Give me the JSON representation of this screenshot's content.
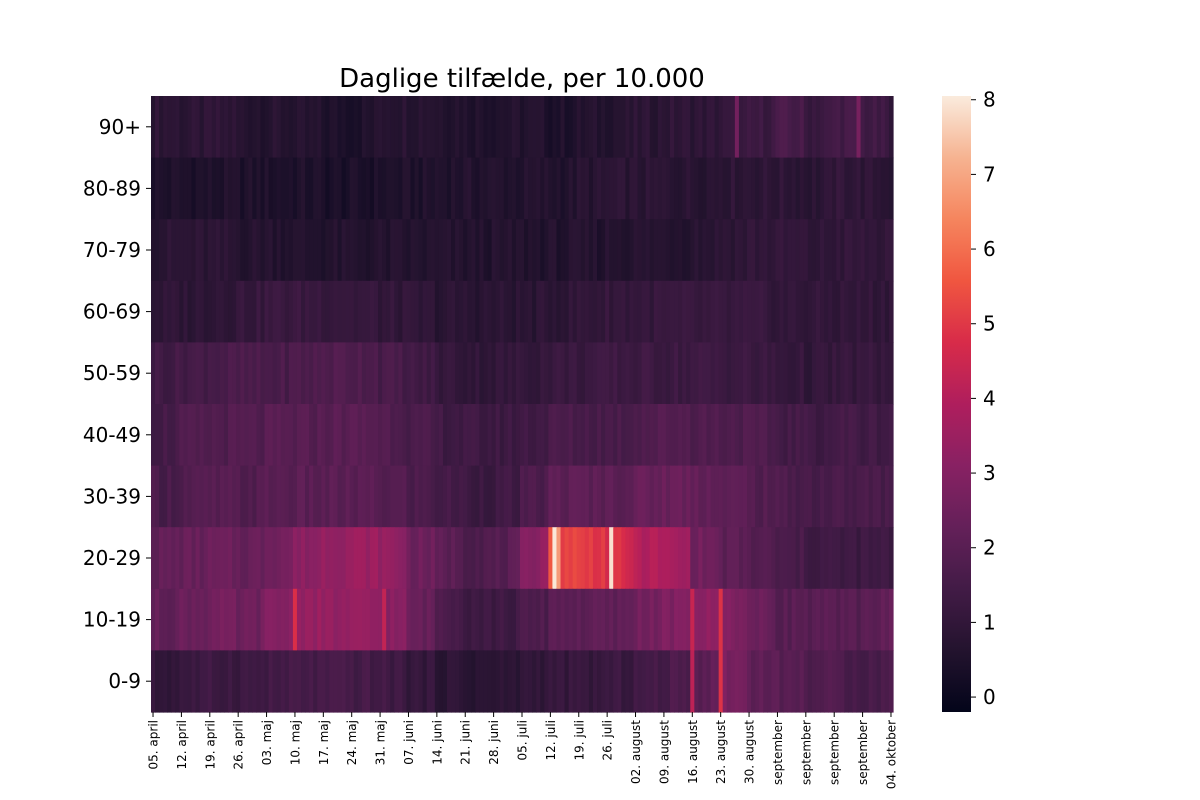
{
  "chart_data": {
    "type": "heatmap",
    "title": "Daglige tilfælde, per 10.000",
    "rows": [
      "90+",
      "80-89",
      "70-79",
      "60-69",
      "50-59",
      "40-49",
      "30-39",
      "20-29",
      "10-19",
      "0-9"
    ],
    "x_tick_labels": [
      "05. april",
      "12. april",
      "19. april",
      "26. april",
      "03. maj",
      "10. maj",
      "17. maj",
      "24. maj",
      "31. maj",
      "07. juni",
      "14. juni",
      "21. juni",
      "28. juni",
      "05. juli",
      "12. juli",
      "19. juli",
      "26. juli",
      "02. august",
      "09. august",
      "16. august",
      "23. august",
      "30. august",
      "september",
      "september",
      "september",
      "september",
      "04. oktober"
    ],
    "x_range": [
      "2021-04-05",
      "2021-10-04"
    ],
    "colorbar": {
      "min": -0.2,
      "max": 8.05,
      "ticks": [
        0,
        1,
        2,
        3,
        4,
        5,
        6,
        7,
        8
      ],
      "colormap": "rocket"
    },
    "weekly_values": {
      "90+": [
        0.9,
        0.8,
        0.9,
        0.7,
        0.7,
        0.6,
        0.5,
        0.5,
        0.8,
        0.8,
        0.7,
        0.6,
        0.6,
        0.6,
        0.5,
        0.6,
        0.7,
        0.8,
        0.9,
        0.9,
        1.0,
        1.2,
        1.6,
        1.2,
        1.5,
        1.4,
        0.8
      ],
      "80-89": [
        0.5,
        0.5,
        0.5,
        0.5,
        0.5,
        0.5,
        0.4,
        0.4,
        0.5,
        0.5,
        0.6,
        0.6,
        0.6,
        0.6,
        0.6,
        0.7,
        0.8,
        0.8,
        0.8,
        0.8,
        0.9,
        0.9,
        0.9,
        0.8,
        1.0,
        0.9,
        0.8
      ],
      "70-79": [
        0.8,
        0.8,
        0.8,
        0.7,
        0.7,
        0.6,
        0.6,
        0.6,
        0.6,
        0.6,
        0.6,
        0.6,
        0.6,
        0.6,
        0.6,
        0.6,
        0.7,
        0.7,
        0.7,
        0.8,
        0.9,
        1.0,
        1.0,
        0.9,
        1.0,
        1.0,
        0.9
      ],
      "60-69": [
        0.9,
        0.9,
        1.0,
        1.1,
        1.2,
        1.2,
        1.2,
        1.1,
        1.0,
        0.9,
        0.8,
        0.8,
        0.8,
        0.8,
        0.9,
        1.0,
        1.1,
        1.1,
        1.1,
        1.1,
        1.1,
        1.1,
        1.0,
        1.0,
        1.0,
        1.0,
        1.0
      ],
      "50-59": [
        1.4,
        1.5,
        1.6,
        1.6,
        1.6,
        1.7,
        1.8,
        1.8,
        1.6,
        1.4,
        1.1,
        1.0,
        1.0,
        1.1,
        1.2,
        1.2,
        1.3,
        1.3,
        1.3,
        1.3,
        1.3,
        1.2,
        1.1,
        1.0,
        1.1,
        1.1,
        1.1
      ],
      "40-49": [
        1.5,
        1.7,
        1.8,
        1.8,
        1.9,
        1.9,
        2.0,
        2.0,
        1.9,
        1.6,
        1.4,
        1.3,
        1.3,
        1.4,
        1.6,
        1.6,
        1.6,
        1.8,
        1.9,
        1.8,
        1.8,
        1.7,
        1.5,
        1.4,
        1.5,
        1.4,
        1.5
      ],
      "30-39": [
        1.6,
        1.8,
        1.9,
        1.8,
        2.0,
        2.0,
        2.0,
        2.0,
        1.9,
        1.7,
        1.5,
        1.3,
        1.3,
        1.6,
        2.1,
        2.1,
        2.1,
        2.3,
        2.4,
        2.3,
        2.1,
        1.9,
        1.7,
        1.6,
        1.6,
        1.6,
        1.6
      ],
      "20-29": [
        2.2,
        2.3,
        2.4,
        2.3,
        2.6,
        3.1,
        3.4,
        3.5,
        3.4,
        2.5,
        2.1,
        1.8,
        1.8,
        2.8,
        5.3,
        5.1,
        4.8,
        4.0,
        3.8,
        2.6,
        2.1,
        1.9,
        1.6,
        1.4,
        1.3,
        1.3,
        1.3
      ],
      "10-19": [
        2.2,
        2.4,
        2.6,
        2.4,
        2.9,
        3.4,
        3.3,
        3.3,
        3.2,
        2.4,
        1.8,
        1.4,
        1.3,
        1.6,
        2.1,
        2.1,
        2.1,
        2.6,
        2.8,
        3.2,
        3.0,
        2.4,
        2.0,
        2.0,
        1.9,
        2.1,
        2.2
      ],
      "0-9": [
        1.0,
        1.2,
        1.3,
        1.3,
        1.4,
        1.5,
        1.5,
        1.5,
        1.4,
        1.1,
        0.9,
        0.8,
        0.8,
        1.0,
        1.1,
        1.1,
        1.2,
        1.4,
        1.6,
        2.0,
        2.8,
        2.2,
        2.0,
        1.8,
        1.7,
        1.6,
        1.7
      ]
    },
    "spikes": [
      {
        "row": "20-29",
        "date": "2021-07-13",
        "value": 8.0
      },
      {
        "row": "20-29",
        "date": "2021-07-14",
        "value": 6.8
      },
      {
        "row": "20-29",
        "date": "2021-07-27",
        "value": 7.9
      },
      {
        "row": "20-29",
        "date": "2021-07-29",
        "value": 5.0
      },
      {
        "row": "20-29",
        "date": "2021-07-12",
        "value": 5.6
      },
      {
        "row": "10-19",
        "date": "2021-05-10",
        "value": 4.8
      },
      {
        "row": "10-19",
        "date": "2021-06-01",
        "value": 4.3
      },
      {
        "row": "10-19",
        "date": "2021-08-16",
        "value": 4.4
      },
      {
        "row": "10-19",
        "date": "2021-08-23",
        "value": 4.9
      },
      {
        "row": "0-9",
        "date": "2021-08-16",
        "value": 4.2
      },
      {
        "row": "0-9",
        "date": "2021-08-23",
        "value": 4.9
      },
      {
        "row": "90+",
        "date": "2021-08-27",
        "value": 2.6
      },
      {
        "row": "90+",
        "date": "2021-09-26",
        "value": 2.7
      }
    ]
  }
}
